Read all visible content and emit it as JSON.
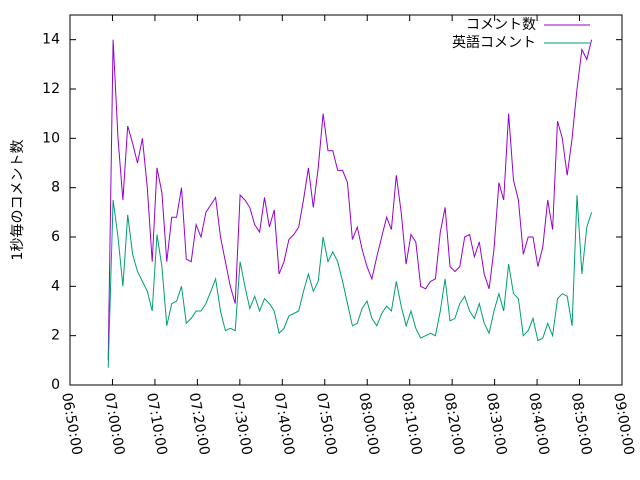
{
  "chart_data": {
    "type": "line",
    "y_label": "1秒毎のコメント数",
    "x": [
      25140,
      25209,
      25278,
      25347,
      25416,
      25485,
      25554,
      25623,
      25692,
      25761,
      25830,
      25899,
      25968,
      26037,
      26106,
      26175,
      26244,
      26313,
      26382,
      26451,
      26520,
      26589,
      26658,
      26727,
      26796,
      26865,
      26934,
      27003,
      27072,
      27141,
      27210,
      27279,
      27348,
      27417,
      27486,
      27555,
      27624,
      27693,
      27762,
      27831,
      27900,
      27969,
      28038,
      28107,
      28176,
      28245,
      28314,
      28383,
      28452,
      28521,
      28590,
      28659,
      28728,
      28797,
      28866,
      28935,
      29004,
      29073,
      29142,
      29211,
      29280,
      29349,
      29418,
      29487,
      29556,
      29625,
      29694,
      29763,
      29832,
      29901,
      29970,
      30039,
      30108,
      30177,
      30246,
      30315,
      30384,
      30453,
      30522,
      30591,
      30660,
      30729,
      30798,
      30867,
      30936,
      31005,
      31074,
      31143,
      31212,
      31281,
      31350,
      31419,
      31488,
      31557,
      31626,
      31695,
      31764,
      31833,
      31902,
      31971
    ],
    "series": [
      {
        "name": "コメント数",
        "color": "#9400d3",
        "values": [
          1,
          14,
          10,
          7.5,
          10.5,
          9.8,
          9,
          10,
          8,
          5,
          8.8,
          7.8,
          5,
          6.8,
          6.8,
          8,
          5.1,
          5,
          6.5,
          6,
          7,
          7.3,
          7.6,
          6,
          5,
          4,
          3.3,
          7.7,
          7.5,
          7.2,
          6.5,
          6.2,
          7.6,
          6.4,
          7.1,
          4.5,
          5,
          5.9,
          6.1,
          6.4,
          7.5,
          8.8,
          7.2,
          8.8,
          11,
          9.5,
          9.5,
          8.7,
          8.7,
          8.2,
          5.9,
          6.4,
          5.5,
          4.8,
          4.3,
          5.2,
          6,
          6.8,
          6.3,
          8.5,
          7,
          4.9,
          6.1,
          5.8,
          4,
          3.9,
          4.2,
          4.3,
          6.2,
          7.2,
          4.8,
          4.6,
          4.8,
          6,
          6.1,
          5.2,
          5.8,
          4.5,
          3.9,
          5.5,
          8.2,
          7.5,
          11,
          8.3,
          7.5,
          5.3,
          6,
          6,
          4.8,
          5.6,
          7.5,
          6.3,
          10.7,
          10,
          8.5,
          10,
          12,
          13.6,
          13.2,
          14
        ]
      },
      {
        "name": "英語コメント",
        "color": "#009e73",
        "values": [
          0.7,
          7.5,
          6,
          4,
          6.9,
          5.3,
          4.6,
          4.2,
          3.8,
          3,
          6.1,
          4.8,
          2.4,
          3.3,
          3.4,
          4,
          2.5,
          2.7,
          3,
          3,
          3.3,
          3.8,
          4.3,
          3,
          2.2,
          2.3,
          2.2,
          5,
          4,
          3.1,
          3.6,
          3,
          3.5,
          3.3,
          3,
          2.1,
          2.3,
          2.8,
          2.9,
          3,
          3.8,
          4.5,
          3.8,
          4.2,
          6,
          5,
          5.4,
          5,
          4.2,
          3.3,
          2.4,
          2.5,
          3.1,
          3.4,
          2.7,
          2.4,
          2.9,
          3.2,
          3,
          4.2,
          3.2,
          2.4,
          3,
          2.3,
          1.9,
          2,
          2.1,
          2,
          3,
          4.3,
          2.6,
          2.7,
          3.3,
          3.6,
          3,
          2.7,
          3.3,
          2.5,
          2.1,
          3,
          3.7,
          3,
          4.9,
          3.7,
          3.5,
          2,
          2.2,
          2.7,
          1.8,
          1.9,
          2.5,
          2,
          3.5,
          3.7,
          3.6,
          2.4,
          7.7,
          4.5,
          6.4,
          7
        ]
      }
    ],
    "xlim": [
      24600,
      32400
    ],
    "xticks": [
      {
        "value": 24600,
        "label": "06:50:00"
      },
      {
        "value": 25200,
        "label": "07:00:00"
      },
      {
        "value": 25800,
        "label": "07:10:00"
      },
      {
        "value": 26400,
        "label": "07:20:00"
      },
      {
        "value": 27000,
        "label": "07:30:00"
      },
      {
        "value": 27600,
        "label": "07:40:00"
      },
      {
        "value": 28200,
        "label": "07:50:00"
      },
      {
        "value": 28800,
        "label": "08:00:00"
      },
      {
        "value": 29400,
        "label": "08:10:00"
      },
      {
        "value": 30000,
        "label": "08:20:00"
      },
      {
        "value": 30600,
        "label": "08:30:00"
      },
      {
        "value": 31200,
        "label": "08:40:00"
      },
      {
        "value": 31800,
        "label": "08:50:00"
      },
      {
        "value": 32400,
        "label": "09:00:00"
      }
    ],
    "ylim": [
      0,
      15
    ],
    "yticks": [
      0,
      2,
      4,
      6,
      8,
      10,
      12,
      14
    ],
    "legend": "top-right"
  }
}
